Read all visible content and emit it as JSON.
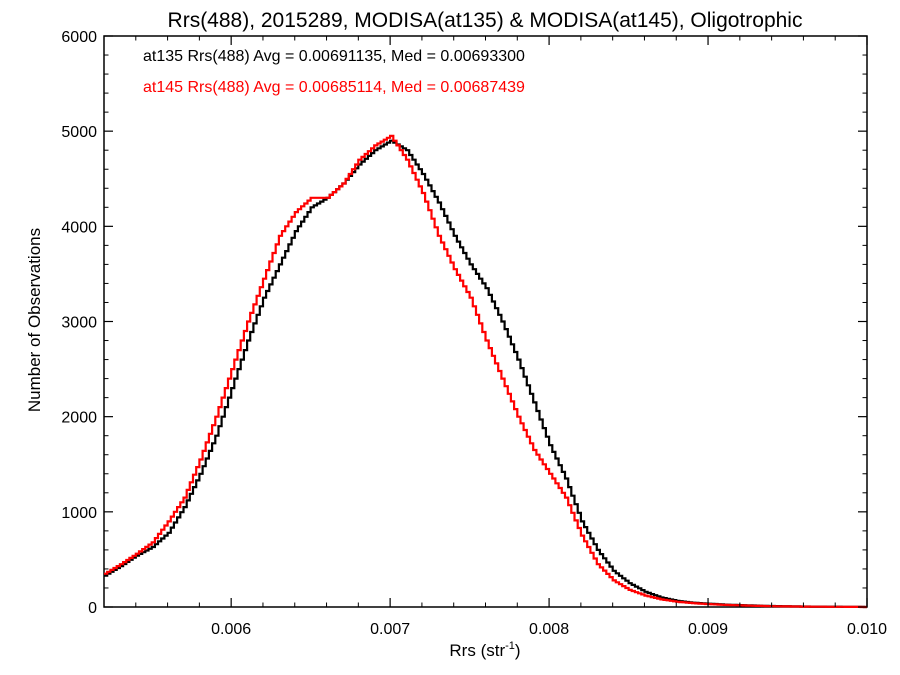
{
  "chart_data": {
    "type": "line",
    "title": "Rrs(488), 2015289, MODISA(at135) & MODISA(at145), Oligotrophic",
    "xlabel": "Rrs (str",
    "xlabel_sup": "-1",
    "xlabel_close": ")",
    "ylabel": "Number of Observations",
    "xlim": [
      0.0052,
      0.01
    ],
    "ylim": [
      0,
      6000
    ],
    "x_ticks": [
      0.006,
      0.007,
      0.008,
      0.009,
      0.01
    ],
    "x_tick_labels": [
      "0.006",
      "0.007",
      "0.008",
      "0.009",
      "0.010"
    ],
    "y_ticks": [
      0,
      1000,
      2000,
      3000,
      4000,
      5000,
      6000
    ],
    "y_tick_labels": [
      "0",
      "1000",
      "2000",
      "3000",
      "4000",
      "5000",
      "6000"
    ],
    "grid": false,
    "legend_position": "top-left",
    "series": [
      {
        "name": "at135",
        "legend": "at135 Rrs(488) Avg = 0.00691135, Med = 0.00693300",
        "color": "#000000",
        "x": [
          0.0052,
          0.0053,
          0.0054,
          0.0055,
          0.0056,
          0.0057,
          0.0058,
          0.0059,
          0.006,
          0.0061,
          0.0062,
          0.0063,
          0.0064,
          0.0065,
          0.0066,
          0.0067,
          0.0068,
          0.0069,
          0.007,
          0.0071,
          0.0072,
          0.0073,
          0.0074,
          0.0075,
          0.0076,
          0.0077,
          0.0078,
          0.0079,
          0.008,
          0.0081,
          0.0082,
          0.0083,
          0.0084,
          0.0085,
          0.0086,
          0.0087,
          0.0088,
          0.0089,
          0.009,
          0.0091,
          0.0092,
          0.0093,
          0.0094,
          0.0095,
          0.0096,
          0.0097,
          0.0098,
          0.0099,
          0.01
        ],
        "y": [
          330,
          430,
          540,
          630,
          780,
          1050,
          1400,
          1800,
          2300,
          2800,
          3250,
          3600,
          3950,
          4200,
          4300,
          4450,
          4650,
          4800,
          4900,
          4800,
          4550,
          4250,
          3900,
          3600,
          3350,
          3000,
          2600,
          2150,
          1700,
          1350,
          900,
          600,
          380,
          250,
          160,
          100,
          65,
          45,
          35,
          25,
          20,
          15,
          10,
          8,
          5,
          4,
          3,
          2,
          0
        ]
      },
      {
        "name": "at145",
        "legend": "at145 Rrs(488) Avg = 0.00685114, Med = 0.00687439",
        "color": "#ff0000",
        "x": [
          0.0052,
          0.0053,
          0.0054,
          0.0055,
          0.0056,
          0.0057,
          0.0058,
          0.0059,
          0.006,
          0.0061,
          0.0062,
          0.0063,
          0.0064,
          0.0065,
          0.0066,
          0.0067,
          0.0068,
          0.0069,
          0.007,
          0.0071,
          0.0072,
          0.0073,
          0.0074,
          0.0075,
          0.0076,
          0.0077,
          0.0078,
          0.0079,
          0.008,
          0.0081,
          0.0082,
          0.0083,
          0.0084,
          0.0085,
          0.0086,
          0.0087,
          0.0088,
          0.0089,
          0.009,
          0.0091,
          0.0092,
          0.0093,
          0.0094,
          0.0095,
          0.0096,
          0.0097,
          0.0098,
          0.0099,
          0.01
        ],
        "y": [
          350,
          450,
          560,
          680,
          900,
          1150,
          1550,
          2000,
          2500,
          3000,
          3450,
          3900,
          4150,
          4300,
          4300,
          4450,
          4700,
          4850,
          4950,
          4700,
          4350,
          3900,
          3550,
          3250,
          2800,
          2400,
          2000,
          1650,
          1400,
          1150,
          750,
          450,
          280,
          180,
          120,
          80,
          55,
          40,
          30,
          22,
          17,
          12,
          8,
          6,
          4,
          3,
          2,
          1,
          0
        ]
      }
    ]
  }
}
